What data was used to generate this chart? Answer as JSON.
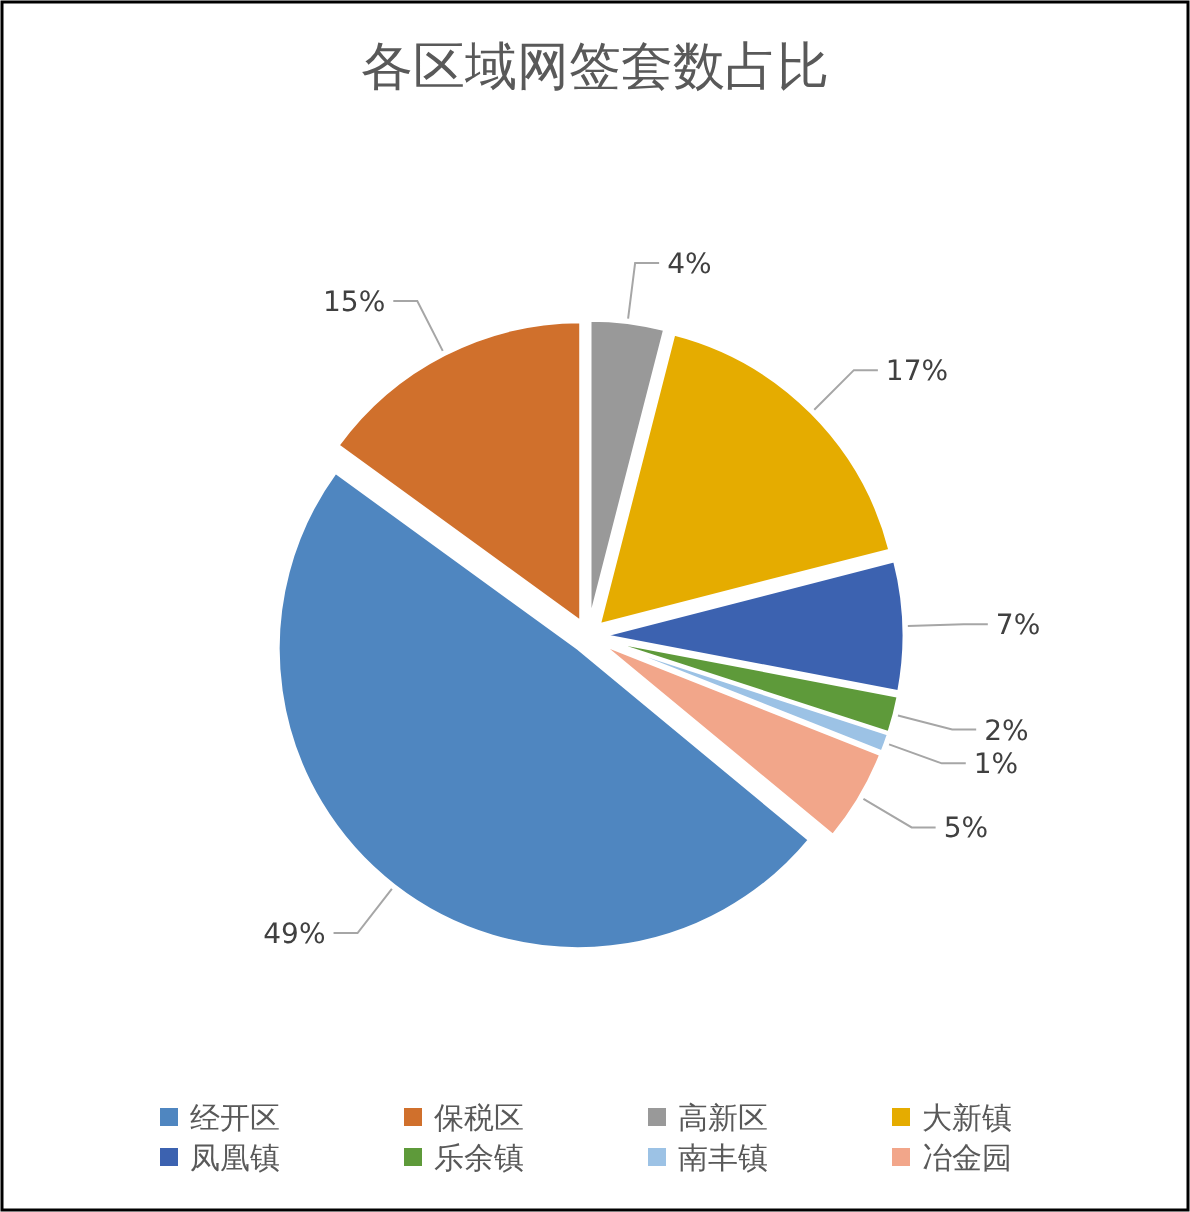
{
  "chart_data": {
    "type": "pie",
    "title": "各区域网签套数占比",
    "categories": [
      "经开区",
      "保税区",
      "高新区",
      "大新镇",
      "凤凰镇",
      "乐余镇",
      "南丰镇",
      "冶金园"
    ],
    "values": [
      49,
      15,
      4,
      17,
      7,
      2,
      1,
      5
    ],
    "colors": [
      "#4f86c0",
      "#d0702c",
      "#999999",
      "#e5ac00",
      "#3c62b0",
      "#5e9a3a",
      "#9cc2e5",
      "#f2a68a"
    ],
    "value_labels": [
      "49%",
      "15%",
      "4%",
      "17%",
      "7%",
      "2%",
      "1%",
      "5%"
    ],
    "legend": "bottom"
  }
}
